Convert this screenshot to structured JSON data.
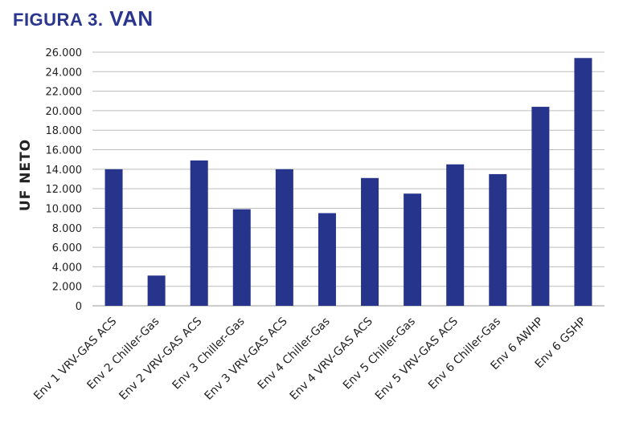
{
  "title": {
    "label": "FIGURA 3.",
    "text": "VAN"
  },
  "chart_data": {
    "type": "bar",
    "title": "FIGURA 3. VAN",
    "ylabel": "UF NETO",
    "xlabel": "",
    "ylim": [
      0,
      26000
    ],
    "ytick_step": 2000,
    "ytick_labels": [
      "0",
      "2.000",
      "4.000",
      "6.000",
      "8.000",
      "10.000",
      "12.000",
      "14.000",
      "16.000",
      "18.000",
      "20.000",
      "22.000",
      "24.000",
      "26.000"
    ],
    "grid": true,
    "bar_color": "#27348b",
    "categories": [
      "Env 1 VRV-GAS ACS",
      "Env 2 Chiller-Gas",
      "Env 2 VRV-GAS ACS",
      "Env 3 Chiller-Gas",
      "Env 3 VRV-GAS ACS",
      "Env 4 Chiller-Gas",
      "Env 4 VRV-GAS ACS",
      "Env 5 Chiller-Gas",
      "Env 5 VRV-GAS ACS",
      "Env 6 Chiller-Gas",
      "Env 6 AWHP",
      "Env 6 GSHP"
    ],
    "values": [
      14000,
      3100,
      14900,
      9900,
      14000,
      9500,
      13100,
      11500,
      14500,
      13500,
      20400,
      25400
    ]
  }
}
